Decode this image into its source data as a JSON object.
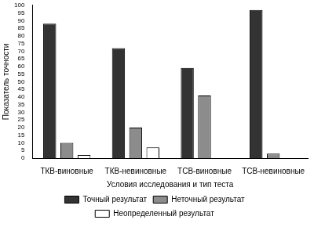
{
  "chart_data": {
    "type": "bar",
    "x_label": "Условия исследования и тип теста",
    "y_label": "Показатель точности",
    "categories": [
      "ТКВ-виновные",
      "ТКВ-невиновные",
      "ТСВ-виновные",
      "ТСВ-невиновные"
    ],
    "series": [
      {
        "name": "Точный результат",
        "color": "#333333",
        "values": [
          88,
          72,
          59,
          97
        ]
      },
      {
        "name": "Неточный результат",
        "color": "#8c8c8c",
        "values": [
          10,
          20,
          41,
          3
        ]
      },
      {
        "name": "Неопределенный результат",
        "color": "#ffffff",
        "values": [
          2,
          7,
          0,
          0
        ]
      }
    ],
    "ylim": [
      0,
      100
    ],
    "yticks": [
      0,
      5,
      10,
      15,
      20,
      25,
      30,
      35,
      40,
      45,
      50,
      55,
      60,
      65,
      70,
      75,
      80,
      85,
      90,
      95,
      100
    ],
    "grid": false,
    "legend": "bottom"
  }
}
